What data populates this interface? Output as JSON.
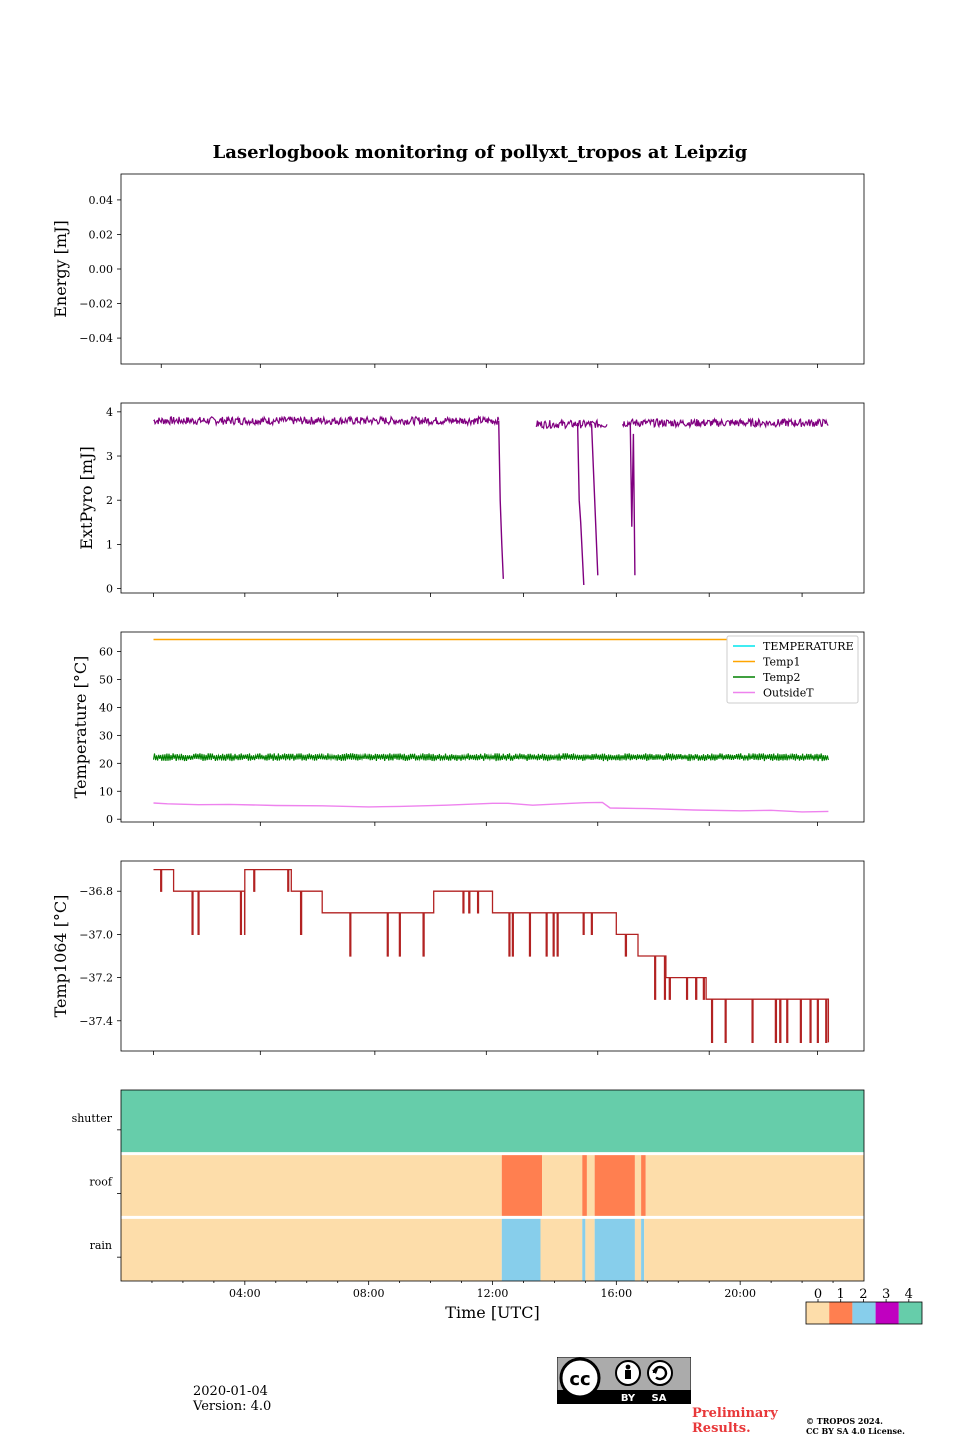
{
  "chart_data": [
    {
      "type": "line",
      "title": "Laserlogbook monitoring of pollyxt_tropos at Leipzig",
      "ylabel": "Energy [mJ]",
      "ylim": [
        -0.055,
        0.055
      ],
      "yticks": [
        0.04,
        0.02,
        0.0,
        -0.02,
        -0.04
      ],
      "ytick_labels": [
        "0.04",
        "0.02",
        "0.00",
        "−0.02",
        "−0.04"
      ],
      "series": []
    },
    {
      "type": "line",
      "ylabel": "ExtPyro [mJ]",
      "ylim": [
        -0.1,
        4.2
      ],
      "yticks": [
        0,
        1,
        2,
        3,
        4
      ],
      "ytick_labels": [
        "0",
        "1",
        "2",
        "3",
        "4"
      ],
      "series": [
        {
          "name": "ExtPyro",
          "color": "#800080",
          "segments": [
            {
              "x_start": 1.05,
              "x_end": 12.2,
              "base": 3.8,
              "noise": 0.09
            },
            {
              "x_start": 13.4,
              "x_end": 15.7,
              "base": 3.72,
              "noise": 0.09
            },
            {
              "x_start": 16.2,
              "x_end": 22.85,
              "base": 3.75,
              "noise": 0.09
            }
          ],
          "drops": [
            {
              "x": [
                12.2,
                12.25,
                12.3,
                12.35
              ],
              "y": [
                3.8,
                2.0,
                1.0,
                0.22
              ]
            },
            {
              "x": [
                14.75,
                14.8,
                14.85,
                14.95
              ],
              "y": [
                3.75,
                2.0,
                1.5,
                0.08
              ]
            },
            {
              "x": [
                15.15,
                15.2,
                15.3,
                15.4
              ],
              "y": [
                3.78,
                3.7,
                2.0,
                0.3
              ]
            },
            {
              "x": [
                16.45,
                16.5,
                16.55,
                16.6
              ],
              "y": [
                3.7,
                1.4,
                3.5,
                0.3
              ]
            }
          ]
        }
      ]
    },
    {
      "type": "line",
      "ylabel": "Temperature [°C]",
      "ylim": [
        -1,
        67
      ],
      "yticks": [
        0,
        10,
        20,
        30,
        40,
        50,
        60
      ],
      "ytick_labels": [
        "0",
        "10",
        "20",
        "30",
        "40",
        "50",
        "60"
      ],
      "legend_position": "top-right",
      "series": [
        {
          "name": "TEMPERATURE",
          "color": "#00e5ee",
          "points": []
        },
        {
          "name": "Temp1",
          "color": "#ffa500",
          "x": [
            1.05,
            22.85
          ],
          "y": [
            64.3,
            64.3
          ]
        },
        {
          "name": "Temp2",
          "color": "#008000",
          "base": 22.2,
          "noise": 1.4,
          "x_start": 1.05,
          "x_end": 22.85
        },
        {
          "name": "OutsideT",
          "color": "#ee82ee",
          "x": [
            1.05,
            1.5,
            2.5,
            3.5,
            5,
            6.5,
            8,
            9,
            10.5,
            12,
            12.5,
            13.3,
            14.2,
            15,
            15.55,
            15.8,
            17,
            18.5,
            20,
            21,
            22,
            22.85
          ],
          "y": [
            5.8,
            5.5,
            5.2,
            5.3,
            4.9,
            4.8,
            4.4,
            4.6,
            5.0,
            5.7,
            5.7,
            5.0,
            5.5,
            5.9,
            6.0,
            4.0,
            3.8,
            3.3,
            3.0,
            3.2,
            2.6,
            2.8
          ]
        }
      ]
    },
    {
      "type": "line",
      "ylabel": "Temp1064 [°C]",
      "ylim": [
        -37.54,
        -36.66
      ],
      "yticks": [
        -36.8,
        -37.0,
        -37.2,
        -37.4
      ],
      "ytick_labels": [
        "−36.8",
        "−37.0",
        "−37.2",
        "−37.4"
      ],
      "series": [
        {
          "name": "Temp1064",
          "color": "#b22222",
          "step": 0.1,
          "levels": [
            {
              "x_start": 1.05,
              "x_end": 1.7,
              "level": -36.7,
              "alt": -36.8
            },
            {
              "x_start": 1.7,
              "x_end": 4.0,
              "level": -36.8,
              "alt": -37.0
            },
            {
              "x_start": 4.0,
              "x_end": 5.5,
              "level": -36.7,
              "alt": -36.8
            },
            {
              "x_start": 5.5,
              "x_end": 6.5,
              "level": -36.8,
              "alt": -37.0
            },
            {
              "x_start": 6.5,
              "x_end": 10.1,
              "level": -36.9,
              "alt": -37.1
            },
            {
              "x_start": 10.1,
              "x_end": 12.0,
              "level": -36.8,
              "alt": -36.9
            },
            {
              "x_start": 12.0,
              "x_end": 14.5,
              "level": -36.9,
              "alt": -37.1
            },
            {
              "x_start": 14.5,
              "x_end": 16.0,
              "level": -36.9,
              "alt": -37.0
            },
            {
              "x_start": 16.0,
              "x_end": 16.7,
              "level": -37.0,
              "alt": -37.1
            },
            {
              "x_start": 16.7,
              "x_end": 17.6,
              "level": -37.1,
              "alt": -37.3
            },
            {
              "x_start": 17.6,
              "x_end": 18.9,
              "level": -37.2,
              "alt": -37.3
            },
            {
              "x_start": 18.9,
              "x_end": 20.6,
              "level": -37.3,
              "alt": -37.5
            },
            {
              "x_start": 20.6,
              "x_end": 22.85,
              "level": -37.3,
              "alt": -37.5
            }
          ],
          "final": -37.5
        }
      ]
    },
    {
      "type": "heatmap",
      "rows": [
        "shutter",
        "roof",
        "rain"
      ],
      "xlabel": "Time [UTC]",
      "xlim": [
        0,
        24
      ],
      "xticks": [
        4,
        8,
        12,
        16,
        20
      ],
      "xtick_labels": [
        "04:00",
        "08:00",
        "12:00",
        "16:00",
        "20:00"
      ],
      "row_values": {
        "shutter": [
          {
            "x_start": 0,
            "x_end": 24,
            "value": 4
          }
        ],
        "roof": [
          {
            "x_start": 0,
            "x_end": 12.3,
            "value": 0
          },
          {
            "x_start": 12.3,
            "x_end": 13.6,
            "value": 1
          },
          {
            "x_start": 13.6,
            "x_end": 14.9,
            "value": 0
          },
          {
            "x_start": 14.9,
            "x_end": 15.05,
            "value": 1
          },
          {
            "x_start": 15.05,
            "x_end": 15.3,
            "value": 0
          },
          {
            "x_start": 15.3,
            "x_end": 16.6,
            "value": 1
          },
          {
            "x_start": 16.6,
            "x_end": 16.8,
            "value": 0
          },
          {
            "x_start": 16.8,
            "x_end": 16.95,
            "value": 1
          },
          {
            "x_start": 16.95,
            "x_end": 24,
            "value": 0
          }
        ],
        "rain": [
          {
            "x_start": 0,
            "x_end": 12.3,
            "value": 0
          },
          {
            "x_start": 12.3,
            "x_end": 13.55,
            "value": 2
          },
          {
            "x_start": 13.55,
            "x_end": 14.9,
            "value": 0
          },
          {
            "x_start": 14.9,
            "x_end": 15.0,
            "value": 2
          },
          {
            "x_start": 15.0,
            "x_end": 15.3,
            "value": 0
          },
          {
            "x_start": 15.3,
            "x_end": 16.6,
            "value": 2
          },
          {
            "x_start": 16.6,
            "x_end": 16.8,
            "value": 0
          },
          {
            "x_start": 16.8,
            "x_end": 16.9,
            "value": 2
          },
          {
            "x_start": 16.9,
            "x_end": 24,
            "value": 0
          }
        ]
      },
      "colorbar": {
        "ticks": [
          "0",
          "1",
          "2",
          "3",
          "4"
        ],
        "colors": [
          "#fdddaa",
          "#ff7f50",
          "#87ceeb",
          "#c000c0",
          "#66cdaa"
        ]
      }
    }
  ],
  "footer": {
    "date": "2020-01-04",
    "version": "Version: 4.0",
    "preliminary_line1": "Preliminary",
    "preliminary_line2": "Results.",
    "copyright_line1": "© TROPOS 2024.",
    "copyright_line2": "CC BY SA 4.0 License.",
    "cc_badge": {
      "by": "BY",
      "sa": "SA"
    }
  }
}
